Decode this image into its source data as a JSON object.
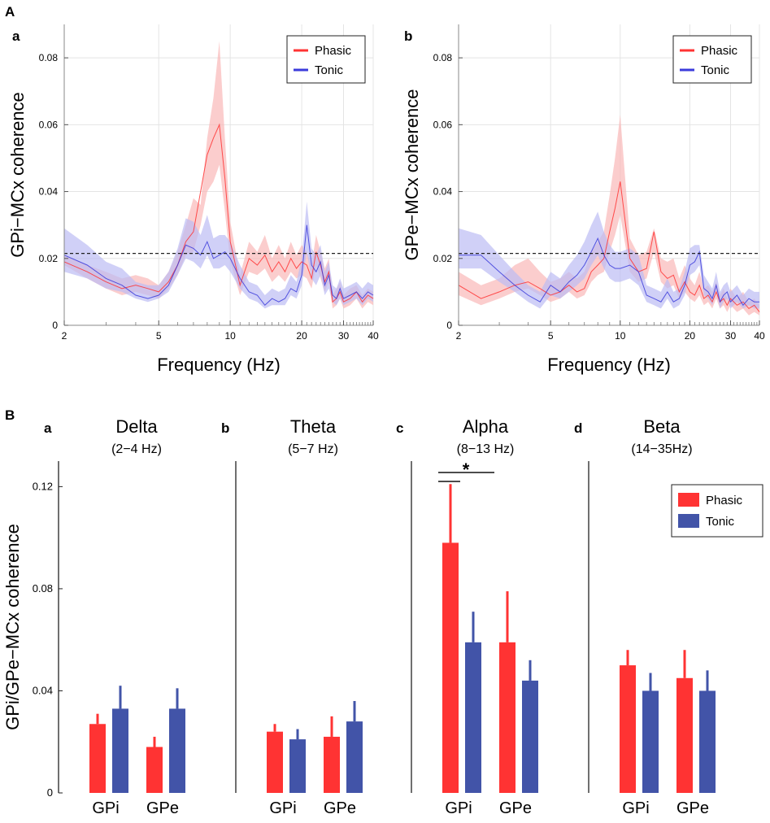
{
  "panel_labels": {
    "A": "A",
    "Aa": "a",
    "Ab": "b",
    "B": "B",
    "Ba": "a",
    "Bb": "b",
    "Bc": "c",
    "Bd": "d"
  },
  "colors": {
    "phasic": "#ff3333",
    "tonic": "#3b3bdb",
    "phasic_band": "#f9b8b8",
    "tonic_band": "#bcbcf4",
    "bar_phasic": "#ff3333",
    "bar_tonic": "#4254a8"
  },
  "chart_data": [
    {
      "id": "Aa",
      "type": "line",
      "xscale": "log",
      "xlim": [
        2,
        40
      ],
      "ylim": [
        0,
        0.09
      ],
      "xticks": [
        2,
        5,
        10,
        20,
        30,
        40
      ],
      "xtick_labels": [
        "2",
        "5",
        "10",
        "20",
        "30",
        "40"
      ],
      "yticks": [
        0,
        0.02,
        0.04,
        0.06,
        0.08
      ],
      "ytick_labels": [
        "0",
        "0.02",
        "0.04",
        "0.06",
        "0.08"
      ],
      "xlabel": "Frequency (Hz)",
      "ylabel": "GPi−MCx coherence",
      "threshold": 0.0215,
      "legend": [
        "Phasic",
        "Tonic"
      ],
      "series": [
        {
          "name": "Phasic",
          "x": [
            2,
            2.5,
            3,
            3.5,
            4,
            4.5,
            5,
            5.5,
            6,
            6.5,
            7,
            7.5,
            8,
            8.5,
            9,
            9.5,
            10,
            11,
            12,
            13,
            14,
            15,
            16,
            17,
            18,
            19,
            20,
            21,
            22,
            23,
            24,
            25,
            26,
            27,
            28,
            29,
            30,
            32,
            34,
            36,
            38,
            40
          ],
          "y": [
            0.019,
            0.016,
            0.013,
            0.011,
            0.012,
            0.011,
            0.01,
            0.013,
            0.018,
            0.025,
            0.028,
            0.04,
            0.051,
            0.056,
            0.06,
            0.044,
            0.025,
            0.012,
            0.02,
            0.018,
            0.021,
            0.016,
            0.019,
            0.016,
            0.02,
            0.017,
            0.019,
            0.018,
            0.014,
            0.022,
            0.018,
            0.013,
            0.016,
            0.007,
            0.008,
            0.01,
            0.007,
            0.008,
            0.01,
            0.007,
            0.009,
            0.008
          ],
          "lower": [
            0.018,
            0.014,
            0.011,
            0.009,
            0.01,
            0.009,
            0.008,
            0.011,
            0.015,
            0.021,
            0.022,
            0.03,
            0.04,
            0.043,
            0.048,
            0.034,
            0.019,
            0.009,
            0.016,
            0.015,
            0.017,
            0.013,
            0.015,
            0.013,
            0.016,
            0.014,
            0.015,
            0.014,
            0.011,
            0.018,
            0.014,
            0.01,
            0.013,
            0.005,
            0.006,
            0.008,
            0.005,
            0.006,
            0.008,
            0.005,
            0.007,
            0.006
          ],
          "upper": [
            0.021,
            0.018,
            0.016,
            0.014,
            0.015,
            0.014,
            0.012,
            0.016,
            0.022,
            0.03,
            0.038,
            0.036,
            0.056,
            0.068,
            0.085,
            0.056,
            0.031,
            0.015,
            0.025,
            0.022,
            0.027,
            0.02,
            0.024,
            0.02,
            0.025,
            0.021,
            0.024,
            0.022,
            0.018,
            0.027,
            0.022,
            0.017,
            0.02,
            0.009,
            0.011,
            0.013,
            0.009,
            0.011,
            0.012,
            0.009,
            0.011,
            0.01
          ]
        },
        {
          "name": "Tonic",
          "x": [
            2,
            2.5,
            3,
            3.5,
            4,
            4.5,
            5,
            5.5,
            6,
            6.5,
            7,
            7.5,
            8,
            8.5,
            9,
            9.5,
            10,
            11,
            12,
            13,
            14,
            15,
            16,
            17,
            18,
            19,
            20,
            21,
            22,
            23,
            24,
            25,
            26,
            27,
            28,
            29,
            30,
            32,
            34,
            36,
            38,
            40
          ],
          "y": [
            0.021,
            0.018,
            0.014,
            0.012,
            0.009,
            0.008,
            0.009,
            0.012,
            0.018,
            0.024,
            0.023,
            0.021,
            0.025,
            0.02,
            0.021,
            0.022,
            0.02,
            0.014,
            0.01,
            0.009,
            0.006,
            0.008,
            0.007,
            0.008,
            0.011,
            0.01,
            0.015,
            0.03,
            0.018,
            0.016,
            0.019,
            0.012,
            0.015,
            0.009,
            0.008,
            0.011,
            0.008,
            0.009,
            0.01,
            0.008,
            0.01,
            0.009
          ],
          "lower": [
            0.016,
            0.014,
            0.011,
            0.01,
            0.008,
            0.007,
            0.008,
            0.01,
            0.015,
            0.02,
            0.019,
            0.017,
            0.021,
            0.017,
            0.017,
            0.018,
            0.016,
            0.011,
            0.008,
            0.007,
            0.005,
            0.006,
            0.006,
            0.006,
            0.009,
            0.008,
            0.012,
            0.022,
            0.014,
            0.012,
            0.015,
            0.009,
            0.011,
            0.007,
            0.006,
            0.008,
            0.006,
            0.007,
            0.008,
            0.006,
            0.008,
            0.007
          ],
          "upper": [
            0.029,
            0.024,
            0.019,
            0.017,
            0.013,
            0.012,
            0.012,
            0.016,
            0.023,
            0.032,
            0.031,
            0.027,
            0.033,
            0.026,
            0.027,
            0.027,
            0.025,
            0.018,
            0.013,
            0.012,
            0.009,
            0.011,
            0.01,
            0.011,
            0.015,
            0.013,
            0.02,
            0.037,
            0.023,
            0.021,
            0.024,
            0.016,
            0.019,
            0.012,
            0.011,
            0.014,
            0.011,
            0.012,
            0.013,
            0.011,
            0.013,
            0.012
          ]
        }
      ]
    },
    {
      "id": "Ab",
      "type": "line",
      "xscale": "log",
      "xlim": [
        2,
        40
      ],
      "ylim": [
        0,
        0.09
      ],
      "xticks": [
        2,
        5,
        10,
        20,
        30,
        40
      ],
      "xtick_labels": [
        "2",
        "5",
        "10",
        "20",
        "30",
        "40"
      ],
      "yticks": [
        0,
        0.02,
        0.04,
        0.06,
        0.08
      ],
      "ytick_labels": [
        "0",
        "0.02",
        "0.04",
        "0.06",
        "0.08"
      ],
      "xlabel": "Frequency (Hz)",
      "ylabel": "GPe−MCx coherence",
      "threshold": 0.0215,
      "legend": [
        "Phasic",
        "Tonic"
      ],
      "series": [
        {
          "name": "Phasic",
          "x": [
            2,
            2.5,
            3,
            3.5,
            4,
            4.5,
            5,
            5.5,
            6,
            6.5,
            7,
            7.5,
            8,
            8.5,
            9,
            9.5,
            10,
            11,
            12,
            13,
            14,
            15,
            16,
            17,
            18,
            19,
            20,
            21,
            22,
            23,
            24,
            25,
            26,
            27,
            28,
            29,
            30,
            32,
            34,
            36,
            38,
            40
          ],
          "y": [
            0.012,
            0.008,
            0.01,
            0.012,
            0.013,
            0.011,
            0.009,
            0.01,
            0.012,
            0.01,
            0.011,
            0.016,
            0.018,
            0.02,
            0.028,
            0.035,
            0.043,
            0.02,
            0.016,
            0.017,
            0.028,
            0.016,
            0.014,
            0.015,
            0.01,
            0.013,
            0.01,
            0.009,
            0.012,
            0.008,
            0.009,
            0.007,
            0.01,
            0.007,
            0.008,
            0.006,
            0.008,
            0.006,
            0.007,
            0.005,
            0.006,
            0.004
          ],
          "lower": [
            0.009,
            0.006,
            0.008,
            0.01,
            0.011,
            0.009,
            0.007,
            0.008,
            0.01,
            0.008,
            0.009,
            0.013,
            0.015,
            0.016,
            0.022,
            0.027,
            0.033,
            0.016,
            0.013,
            0.014,
            0.022,
            0.013,
            0.011,
            0.012,
            0.008,
            0.01,
            0.008,
            0.007,
            0.009,
            0.006,
            0.007,
            0.005,
            0.008,
            0.005,
            0.006,
            0.004,
            0.006,
            0.004,
            0.005,
            0.003,
            0.004,
            0.003
          ],
          "upper": [
            0.016,
            0.012,
            0.014,
            0.018,
            0.02,
            0.016,
            0.013,
            0.014,
            0.016,
            0.014,
            0.016,
            0.022,
            0.025,
            0.028,
            0.039,
            0.05,
            0.063,
            0.026,
            0.021,
            0.022,
            0.029,
            0.02,
            0.019,
            0.02,
            0.014,
            0.018,
            0.014,
            0.012,
            0.016,
            0.011,
            0.012,
            0.01,
            0.013,
            0.009,
            0.011,
            0.008,
            0.011,
            0.008,
            0.01,
            0.007,
            0.008,
            0.006
          ]
        },
        {
          "name": "Tonic",
          "x": [
            2,
            2.5,
            3,
            3.5,
            4,
            4.5,
            5,
            5.5,
            6,
            6.5,
            7,
            7.5,
            8,
            8.5,
            9,
            9.5,
            10,
            11,
            12,
            13,
            14,
            15,
            16,
            17,
            18,
            19,
            20,
            21,
            22,
            23,
            24,
            25,
            26,
            27,
            28,
            29,
            30,
            32,
            34,
            36,
            38,
            40
          ],
          "y": [
            0.021,
            0.021,
            0.016,
            0.012,
            0.009,
            0.007,
            0.012,
            0.01,
            0.013,
            0.015,
            0.018,
            0.022,
            0.026,
            0.021,
            0.018,
            0.017,
            0.017,
            0.018,
            0.016,
            0.009,
            0.008,
            0.007,
            0.01,
            0.007,
            0.008,
            0.012,
            0.018,
            0.019,
            0.022,
            0.011,
            0.01,
            0.008,
            0.012,
            0.007,
            0.009,
            0.01,
            0.007,
            0.009,
            0.006,
            0.008,
            0.007,
            0.007
          ],
          "lower": [
            0.017,
            0.017,
            0.013,
            0.01,
            0.007,
            0.005,
            0.009,
            0.008,
            0.01,
            0.012,
            0.014,
            0.018,
            0.021,
            0.017,
            0.014,
            0.013,
            0.013,
            0.014,
            0.012,
            0.007,
            0.006,
            0.005,
            0.008,
            0.005,
            0.006,
            0.009,
            0.015,
            0.016,
            0.018,
            0.009,
            0.008,
            0.006,
            0.01,
            0.005,
            0.007,
            0.008,
            0.005,
            0.007,
            0.005,
            0.006,
            0.005,
            0.005
          ],
          "upper": [
            0.029,
            0.027,
            0.021,
            0.016,
            0.012,
            0.01,
            0.016,
            0.014,
            0.018,
            0.021,
            0.025,
            0.03,
            0.034,
            0.028,
            0.024,
            0.022,
            0.022,
            0.023,
            0.021,
            0.012,
            0.011,
            0.01,
            0.014,
            0.01,
            0.011,
            0.016,
            0.023,
            0.024,
            0.024,
            0.015,
            0.013,
            0.011,
            0.016,
            0.01,
            0.012,
            0.013,
            0.01,
            0.012,
            0.009,
            0.011,
            0.01,
            0.01
          ]
        }
      ]
    },
    {
      "id": "B",
      "type": "bar",
      "ylabel": "GPi/GPe−MCx coherence",
      "ylim": [
        0,
        0.13
      ],
      "yticks": [
        0,
        0.04,
        0.08,
        0.12
      ],
      "ytick_labels": [
        "0",
        "0.04",
        "0.08",
        "0.12"
      ],
      "categories": [
        "GPi",
        "GPe"
      ],
      "legend": [
        "Phasic",
        "Tonic"
      ],
      "significance": "*",
      "bands": [
        {
          "label": "Delta",
          "range": "(2−4 Hz)",
          "phasic": [
            0.027,
            0.018
          ],
          "phasic_err": [
            0.004,
            0.004
          ],
          "tonic": [
            0.033,
            0.033
          ],
          "tonic_err": [
            0.009,
            0.008
          ]
        },
        {
          "label": "Theta",
          "range": "(5−7 Hz)",
          "phasic": [
            0.024,
            0.022
          ],
          "phasic_err": [
            0.003,
            0.008
          ],
          "tonic": [
            0.021,
            0.028
          ],
          "tonic_err": [
            0.004,
            0.008
          ]
        },
        {
          "label": "Alpha",
          "range": "(8−13 Hz)",
          "phasic": [
            0.098,
            0.059
          ],
          "phasic_err": [
            0.023,
            0.02
          ],
          "tonic": [
            0.059,
            0.044
          ],
          "tonic_err": [
            0.012,
            0.008
          ]
        },
        {
          "label": "Beta",
          "range": "(14−35Hz)",
          "phasic": [
            0.05,
            0.045
          ],
          "phasic_err": [
            0.006,
            0.011
          ],
          "tonic": [
            0.04,
            0.04
          ],
          "tonic_err": [
            0.007,
            0.008
          ]
        }
      ]
    }
  ]
}
